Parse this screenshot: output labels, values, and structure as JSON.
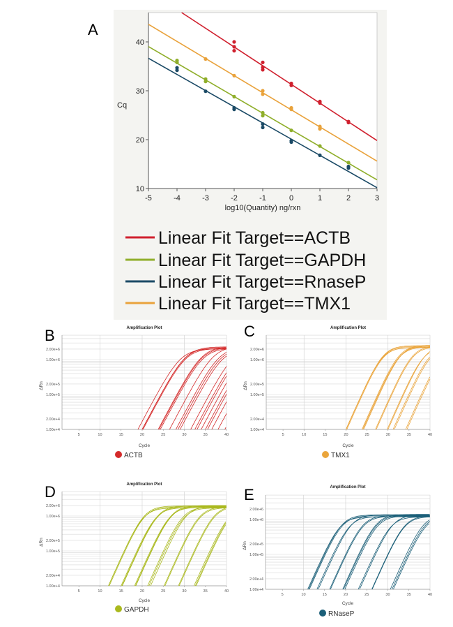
{
  "panel_labels": {
    "a": "A",
    "b": "B",
    "c": "C",
    "d": "D",
    "e": "E"
  },
  "chart_data": [
    {
      "type": "scatter",
      "panel": "A",
      "xlabel": "log10(Quantity) ng/rxn",
      "ylabel": "Cq",
      "xlim": [
        -5,
        3
      ],
      "ylim": [
        10,
        46
      ],
      "xticks": [
        -5,
        -4,
        -3,
        -2,
        -1,
        0,
        1,
        2,
        3
      ],
      "yticks": [
        10,
        20,
        30,
        40
      ],
      "grid": false,
      "legend_position": "bottom",
      "series": [
        {
          "name": "Linear Fit Target==ACTB",
          "color": "#d0202e",
          "fit": {
            "slope": -3.83,
            "intercept": 31.3
          },
          "points": [
            [
              -2,
              40
            ],
            [
              -2,
              39
            ],
            [
              -2,
              38.2
            ],
            [
              -1,
              35.8
            ],
            [
              -1,
              34.8
            ],
            [
              -1,
              34.3
            ],
            [
              0,
              31.5
            ],
            [
              0,
              31.1
            ],
            [
              1,
              27.8
            ],
            [
              1,
              27.5
            ],
            [
              2,
              23.7
            ],
            [
              2,
              23.5
            ]
          ]
        },
        {
          "name": "Linear Fit Target==GAPDH",
          "color": "#8fae2a",
          "fit": {
            "slope": -3.41,
            "intercept": 22.0
          },
          "points": [
            [
              -4,
              36.2
            ],
            [
              -4,
              35.8
            ],
            [
              -3,
              32.4
            ],
            [
              -3,
              31.9
            ],
            [
              -2,
              28.8
            ],
            [
              -1,
              25.5
            ],
            [
              -1,
              24.9
            ],
            [
              0,
              21.9
            ],
            [
              1,
              18.7
            ],
            [
              2,
              15.3
            ]
          ]
        },
        {
          "name": "Linear Fit Target==RnaseP",
          "color": "#1b4a66",
          "fit": {
            "slope": -3.31,
            "intercept": 20.1
          },
          "points": [
            [
              -4,
              34.7
            ],
            [
              -4,
              34.2
            ],
            [
              -3,
              29.9
            ],
            [
              -2,
              26.5
            ],
            [
              -2,
              26.2
            ],
            [
              -1,
              23.2
            ],
            [
              -1,
              22.5
            ],
            [
              0,
              19.8
            ],
            [
              0,
              19.5
            ],
            [
              1,
              16.8
            ],
            [
              2,
              14.5
            ],
            [
              2,
              14.2
            ]
          ]
        },
        {
          "name": "Linear Fit Target==TMX1",
          "color": "#e9a23b",
          "fit": {
            "slope": -3.5,
            "intercept": 26.1
          },
          "points": [
            [
              -3,
              36.5
            ],
            [
              -2,
              33.1
            ],
            [
              -1,
              30
            ],
            [
              -1,
              29.3
            ],
            [
              0,
              26.5
            ],
            [
              0,
              26.2
            ],
            [
              1,
              22.7
            ],
            [
              1,
              22.2
            ]
          ]
        }
      ]
    },
    {
      "type": "line",
      "panel": "B",
      "title": "Amplification Plot",
      "xlabel": "Cycle",
      "ylabel": "ΔRn",
      "legend": "ACTB",
      "color": "#d42a2a",
      "xlim": [
        1,
        40
      ],
      "xticks": [
        5,
        10,
        15,
        20,
        25,
        30,
        35,
        40
      ],
      "yscale": "log",
      "ylim": [
        10000,
        5000000
      ],
      "ytick_labels": [
        "2.00e+6",
        "1.00e+6",
        "2.00e+5",
        "1.00e+5",
        "2.00e+4",
        "1.00e+4"
      ],
      "ytick_values": [
        2000000,
        1000000,
        200000,
        100000,
        20000,
        10000
      ],
      "curves_threshold_cycles": [
        19,
        20,
        20,
        20.2,
        23.8,
        24,
        24.3,
        26.5,
        28,
        28.5,
        29,
        31.5,
        32.5,
        33,
        34,
        35,
        35.5,
        36.5,
        38,
        39.6
      ],
      "plateau": 2400000
    },
    {
      "type": "line",
      "panel": "C",
      "title": "Amplification Plot",
      "xlabel": "Cycle",
      "ylabel": "ΔRn",
      "legend": "TMX1",
      "color": "#eaa53c",
      "xlim": [
        1,
        40
      ],
      "xticks": [
        5,
        10,
        15,
        20,
        25,
        30,
        35,
        40
      ],
      "yscale": "log",
      "ylim": [
        10000,
        5000000
      ],
      "ytick_labels": [
        "2.00e+6",
        "1.00e+6",
        "2.00e+5",
        "1.00e+5",
        "2.00e+4",
        "1.00e+4"
      ],
      "ytick_values": [
        2000000,
        1000000,
        200000,
        100000,
        20000,
        10000
      ],
      "curves_threshold_cycles": [
        20,
        20,
        20,
        20.2,
        23.8,
        24,
        24,
        24.2,
        27,
        27.2,
        29.8,
        30,
        31.2,
        31.5,
        34.2,
        34.5
      ],
      "plateau": 2600000
    },
    {
      "type": "line",
      "panel": "D",
      "title": "Amplification Plot",
      "xlabel": "Cycle",
      "ylabel": "ΔRn",
      "legend": "GAPDH",
      "color": "#aab91e",
      "xlim": [
        1,
        40
      ],
      "xticks": [
        5,
        10,
        15,
        20,
        25,
        30,
        35,
        40
      ],
      "yscale": "log",
      "ylim": [
        10000,
        5000000
      ],
      "ytick_labels": [
        "2.00e+6",
        "1.00e+6",
        "2.00e+5",
        "1.00e+5",
        "2.00e+4",
        "1.00e+4"
      ],
      "ytick_values": [
        2000000,
        1000000,
        200000,
        100000,
        20000,
        10000
      ],
      "curves_threshold_cycles": [
        12,
        12,
        12.2,
        15,
        15.2,
        15.3,
        18.2,
        18.4,
        18.5,
        21.3,
        21.6,
        22,
        25.2,
        25.4,
        28.6,
        28.8,
        32.3,
        32.6,
        32.8
      ],
      "plateau": 2000000
    },
    {
      "type": "line",
      "panel": "E",
      "title": "Amplification Plot",
      "xlabel": "Cycle",
      "ylabel": "ΔRn",
      "legend": "RNaseP",
      "color": "#1b5f78",
      "xlim": [
        1,
        40
      ],
      "xticks": [
        5,
        10,
        15,
        20,
        25,
        30,
        35,
        40
      ],
      "yscale": "log",
      "ylim": [
        10000,
        5000000
      ],
      "ytick_labels": [
        "2.00e+6",
        "1.00e+6",
        "2.00e+5",
        "1.00e+5",
        "2.00e+4",
        "1.00e+4"
      ],
      "ytick_values": [
        2000000,
        1000000,
        200000,
        100000,
        20000,
        10000
      ],
      "curves_threshold_cycles": [
        11,
        11.2,
        11.4,
        13.2,
        13.5,
        16.2,
        16.4,
        19.3,
        19.5,
        19.8,
        23,
        23.3,
        26.2,
        26.3,
        30.6,
        31,
        31.3
      ],
      "plateau": 1400000
    }
  ]
}
